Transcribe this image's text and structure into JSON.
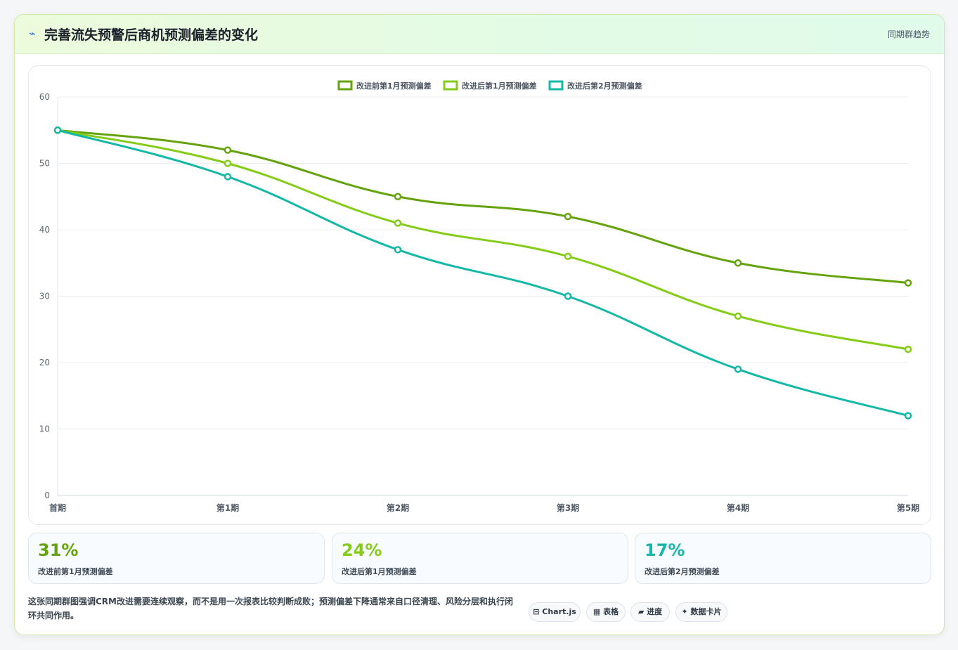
{
  "header": {
    "icon": "lightning-icon",
    "title": "完善流失预警后商机预测偏差的变化",
    "link": "同期群趋势"
  },
  "chart_data": {
    "type": "line",
    "categories": [
      "首期",
      "第1期",
      "第2期",
      "第3期",
      "第4期",
      "第5期"
    ],
    "ylim": [
      0,
      60
    ],
    "yticks": [
      0,
      10,
      20,
      30,
      40,
      50,
      60
    ],
    "legend_position": "top-center",
    "grid": true,
    "series": [
      {
        "name": "改进前第1月预测偏差",
        "color": "#65a30d",
        "values": [
          55,
          52,
          45,
          42,
          35,
          32
        ]
      },
      {
        "name": "改进后第1月预测偏差",
        "color": "#84cc16",
        "values": [
          55,
          50,
          41,
          36,
          27,
          22
        ]
      },
      {
        "name": "改进后第2月预测偏差",
        "color": "#14b8a6",
        "values": [
          55,
          48,
          37,
          30,
          19,
          12
        ]
      }
    ]
  },
  "stats": [
    {
      "value": "31%",
      "label": "改进前第1月预测偏差",
      "color": "#65a30d"
    },
    {
      "value": "24%",
      "label": "改进后第1月预测偏差",
      "color": "#84cc16"
    },
    {
      "value": "17%",
      "label": "改进后第2月预测偏差",
      "color": "#14b8a6"
    }
  ],
  "note": "这张同期群图强调CRM改进需要连续观察，而不是用一次报表比较判断成败；预测偏差下降通常来自口径清理、风险分层和执行闭环共同作用。",
  "chips": [
    {
      "icon": "chart-icon",
      "glyph": "⊟",
      "label": "Chart.js"
    },
    {
      "icon": "table-icon",
      "glyph": "▦",
      "label": "表格"
    },
    {
      "icon": "progress-icon",
      "glyph": "▰",
      "label": "进度"
    },
    {
      "icon": "sparkle-icon",
      "glyph": "✦",
      "label": "数据卡片"
    }
  ]
}
